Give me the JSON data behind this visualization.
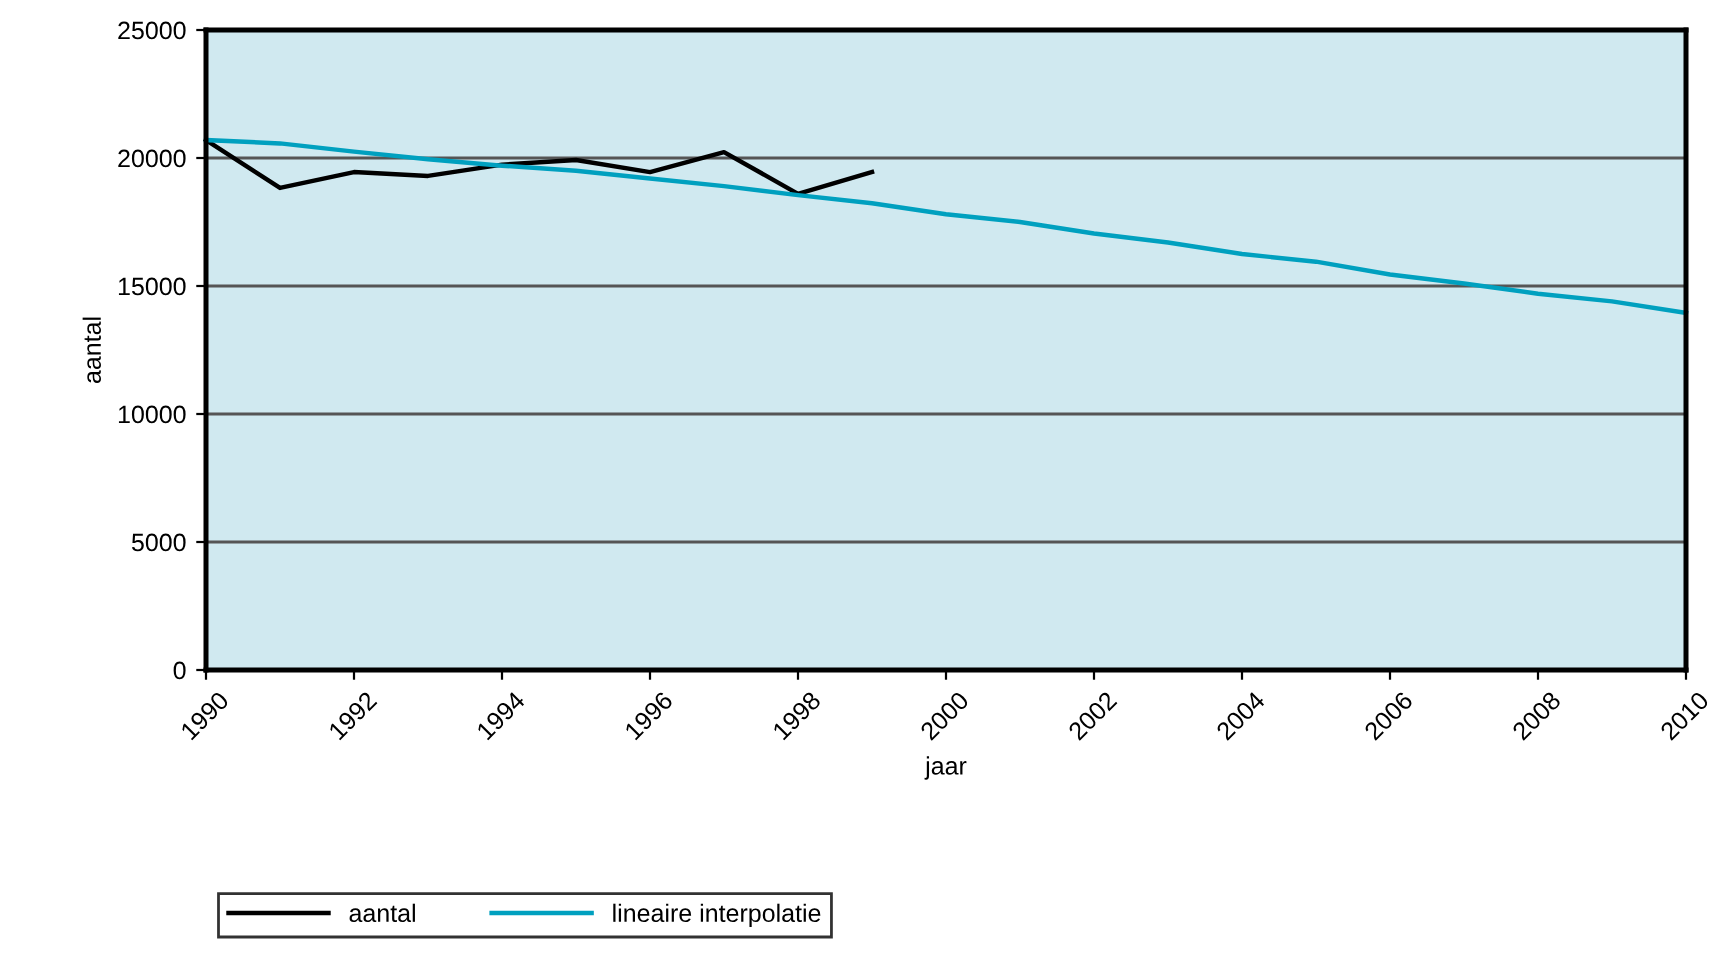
{
  "chart_data": {
    "type": "line",
    "xlabel": "jaar",
    "ylabel": "aantal",
    "xlim": [
      1990,
      2010
    ],
    "xticks": [
      1990,
      1992,
      1994,
      1996,
      1998,
      2000,
      2002,
      2004,
      2006,
      2008,
      2010
    ],
    "ylim": [
      0,
      25000
    ],
    "yticks": [
      0,
      5000,
      10000,
      15000,
      20000,
      25000
    ],
    "grid": "y",
    "legend": "bottom",
    "marker": "none",
    "line_style": "solid",
    "series": [
      {
        "name": "aantal",
        "color": "#000000",
        "x": [
          1990,
          1991,
          1992,
          1993,
          1994,
          1995,
          1996,
          1997,
          1998,
          1999
        ],
        "values": [
          20700,
          18830,
          19450,
          19300,
          19740,
          19920,
          19450,
          20230,
          18600,
          19450
        ]
      },
      {
        "name": "lineaire interpolatie",
        "color": "#00a0bf",
        "x": [
          1990,
          1991,
          1992,
          1993,
          1994,
          1995,
          1996,
          1997,
          1998,
          1999,
          2000,
          2001,
          2002,
          2003,
          2004,
          2005,
          2006,
          2007,
          2008,
          2009,
          2010
        ],
        "values": [
          20700,
          20570,
          20250,
          19950,
          19700,
          19500,
          19200,
          18900,
          18550,
          18230,
          17800,
          17500,
          17050,
          16700,
          16250,
          15950,
          15450,
          15100,
          14700,
          14400,
          13950
        ]
      }
    ]
  }
}
